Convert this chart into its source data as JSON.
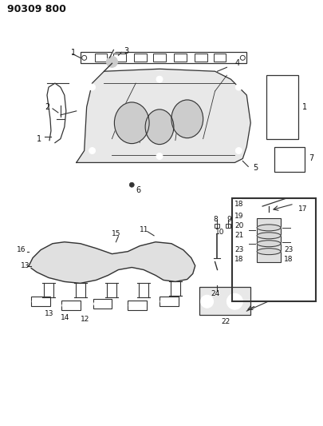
{
  "title": "90309 800",
  "bg_color": "#ffffff",
  "line_color": "#333333",
  "figsize": [
    4.06,
    5.33
  ],
  "dpi": 100
}
